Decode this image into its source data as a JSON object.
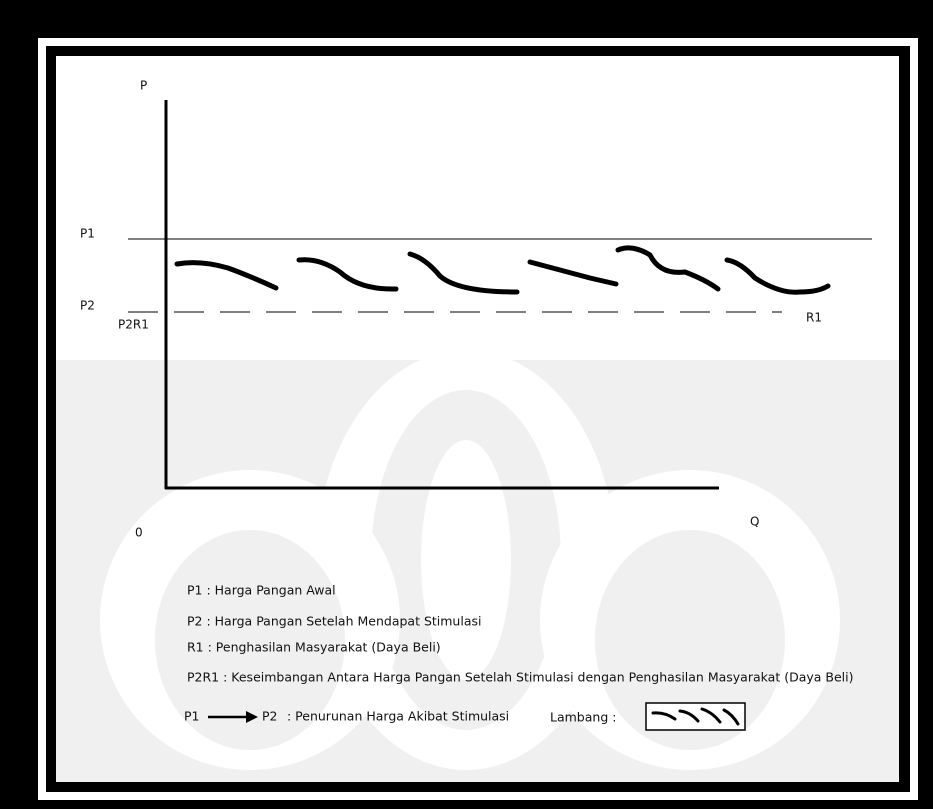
{
  "axes": {
    "y_label": "P",
    "x_label": "Q",
    "origin": "0"
  },
  "lines": {
    "p1": "P1",
    "p2": "P2",
    "p2r1": "P2R1",
    "r1": "R1"
  },
  "legend": {
    "items": [
      "P1 : Harga Pangan Awal",
      "P2 : Harga Pangan Setelah Mendapat Stimulasi",
      "R1 : Penghasilan Masyarakat (Daya Beli)",
      "P2R1 : Keseimbangan Antara Harga Pangan Setelah Stimulasi dengan Penghasilan Masyarakat (Daya Beli)"
    ],
    "arrow_from": "P1",
    "arrow_to": "P2",
    "arrow_text": ": Penurunan Harga Akibat Stimulasi",
    "symbol_label": "Lambang :"
  }
}
